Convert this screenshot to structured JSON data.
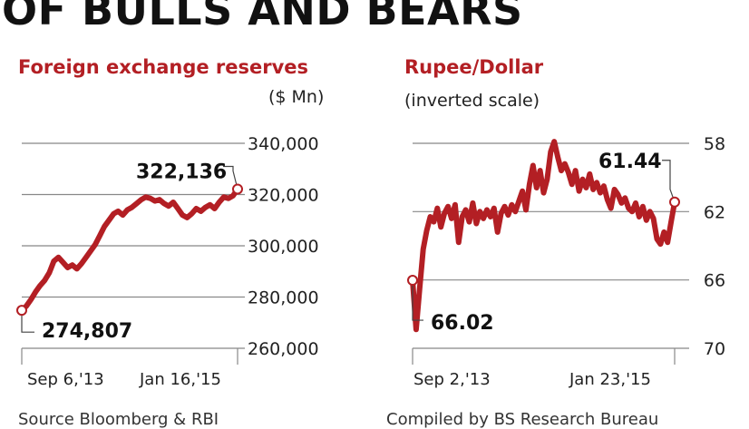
{
  "headline": "OF BULLS AND BEARS",
  "footer": {
    "left": "Source Bloomberg & RBI",
    "right": "Compiled by BS Research Bureau"
  },
  "colors": {
    "series": "#b31f24",
    "grid": "#888888",
    "title": "#b31f24"
  },
  "chart_data": [
    {
      "type": "line",
      "title": "Foreign exchange reserves",
      "unit": "($ Mn)",
      "ylim": [
        260000,
        340000
      ],
      "yticks": [
        "340,000",
        "320,000",
        "300,000",
        "280,000",
        "260,000"
      ],
      "ytick_values": [
        340000,
        320000,
        300000,
        280000,
        260000
      ],
      "x_labels": [
        "Sep 6,'13",
        "Jan 16,'15"
      ],
      "grid": true,
      "series": [
        {
          "values": [
            274807,
            276500,
            279000,
            282000,
            284500,
            286500,
            289500,
            294000,
            295500,
            293500,
            291500,
            292500,
            291000,
            293000,
            295500,
            298000,
            300500,
            304000,
            307500,
            310000,
            312500,
            313500,
            312000,
            314000,
            315000,
            316500,
            318000,
            319000,
            318500,
            317500,
            318000,
            316500,
            315500,
            317000,
            314500,
            312000,
            311000,
            312500,
            314500,
            313500,
            315000,
            316000,
            314500,
            317000,
            319000,
            318500,
            319500,
            322136
          ]
        }
      ],
      "annotations": [
        {
          "label": "322,136",
          "value": 322136,
          "at": "end"
        },
        {
          "label": "274,807",
          "value": 274807,
          "at": "start"
        }
      ]
    },
    {
      "type": "line",
      "title": "Rupee/Dollar",
      "subtitle": "(inverted scale)",
      "inverted": true,
      "ylim": [
        58,
        70
      ],
      "yticks": [
        "58",
        "62",
        "66",
        "70"
      ],
      "ytick_values": [
        58,
        62,
        66,
        70
      ],
      "x_labels": [
        "Sep 2,'13",
        "Jan 23,'15"
      ],
      "grid": true,
      "series": [
        {
          "values": [
            66.02,
            68.9,
            66.5,
            64.2,
            63.1,
            62.3,
            62.6,
            61.8,
            62.9,
            62.1,
            61.7,
            62.4,
            61.6,
            63.8,
            62.3,
            61.9,
            62.6,
            61.5,
            62.7,
            62.0,
            62.4,
            61.9,
            62.3,
            61.8,
            63.2,
            62.1,
            61.7,
            62.2,
            61.6,
            62.0,
            61.4,
            60.8,
            61.9,
            60.4,
            59.3,
            60.6,
            59.6,
            60.9,
            60.1,
            58.5,
            57.9,
            58.8,
            59.6,
            59.2,
            59.7,
            60.4,
            59.6,
            60.8,
            60.1,
            60.6,
            59.8,
            60.7,
            60.3,
            60.9,
            60.5,
            61.3,
            61.8,
            60.7,
            61.0,
            61.5,
            61.2,
            61.8,
            62.0,
            61.5,
            62.3,
            61.7,
            62.5,
            62.0,
            62.4,
            63.6,
            63.9,
            63.2,
            63.8,
            62.6,
            61.44
          ]
        }
      ],
      "annotations": [
        {
          "label": "61.44",
          "value": 61.44,
          "at": "end"
        },
        {
          "label": "66.02",
          "value": 66.02,
          "at": "start"
        }
      ]
    }
  ]
}
